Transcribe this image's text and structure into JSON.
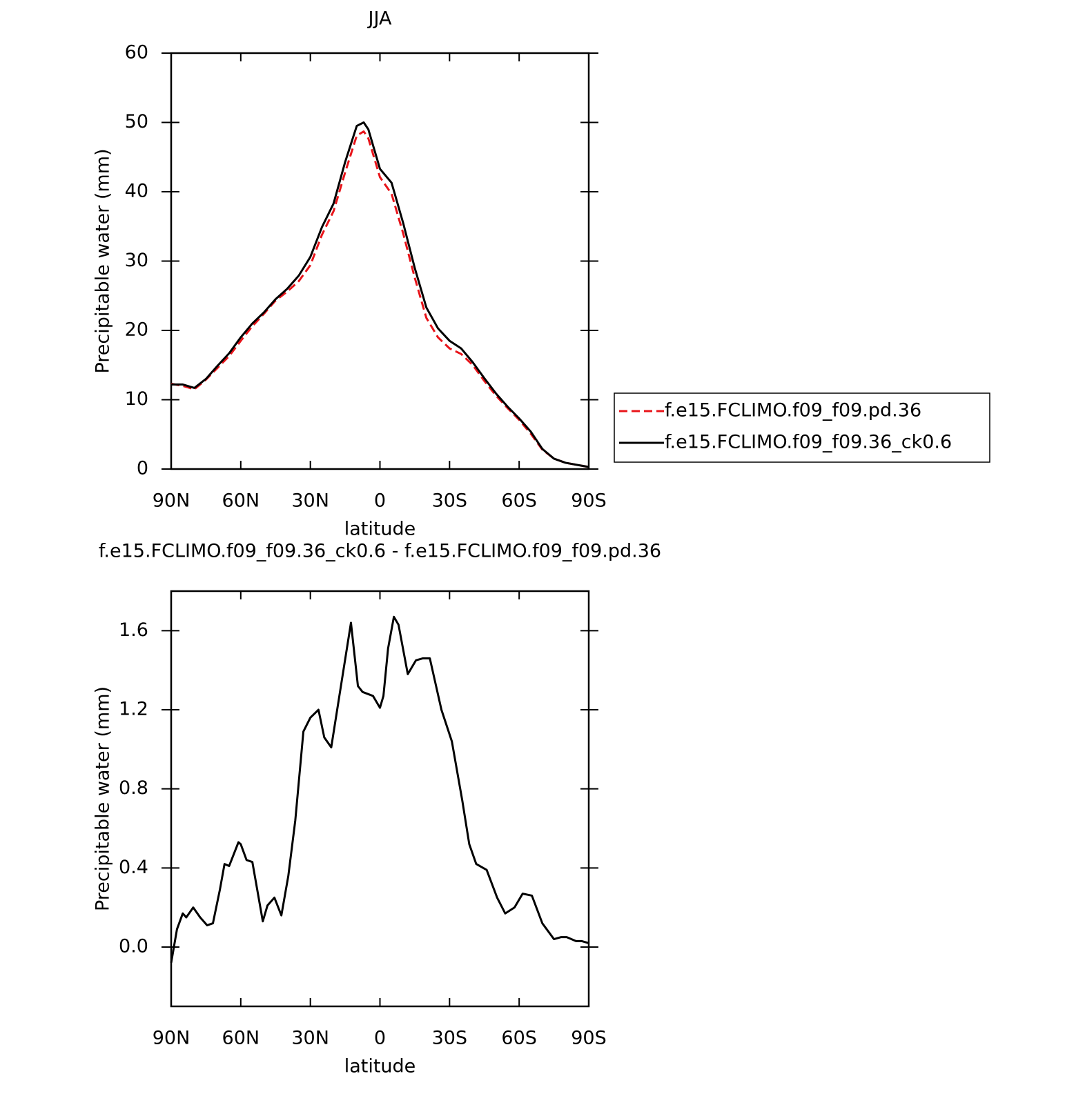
{
  "chart_data": [
    {
      "type": "line",
      "title": "JJA",
      "xlabel": "latitude",
      "ylabel": "Precipitable water (mm)",
      "x": [
        90,
        85,
        80,
        75,
        70,
        65,
        60,
        55,
        50,
        45,
        40,
        35,
        30,
        25,
        20,
        15,
        10,
        7,
        5,
        0,
        -5,
        -10,
        -15,
        -20,
        -25,
        -30,
        -35,
        -40,
        -45,
        -50,
        -55,
        -60,
        -65,
        -70,
        -75,
        -80,
        -85,
        -90
      ],
      "series": [
        {
          "name": "f.e15.FCLIMO.f09_f09.pd.36",
          "color": "#e8141a",
          "style": "dashed",
          "values": [
            12.3,
            12.0,
            11.5,
            12.9,
            14.6,
            16.3,
            18.5,
            20.6,
            22.4,
            24.3,
            25.6,
            27.1,
            29.4,
            33.8,
            37.2,
            42.8,
            48.1,
            48.7,
            47.7,
            42.1,
            39.7,
            34.0,
            27.6,
            21.8,
            19.0,
            17.4,
            16.6,
            15.0,
            12.7,
            10.6,
            8.8,
            7.1,
            5.1,
            2.8,
            1.5,
            0.9,
            0.6,
            0.3
          ]
        },
        {
          "name": "f.e15.FCLIMO.f09_f09.36_ck0.6",
          "color": "#000000",
          "style": "solid",
          "values": [
            12.2,
            12.2,
            11.7,
            13.0,
            14.9,
            16.7,
            19.0,
            21.0,
            22.6,
            24.5,
            26.0,
            27.9,
            30.6,
            34.9,
            38.3,
            44.3,
            49.5,
            50.0,
            49.0,
            43.3,
            41.3,
            35.5,
            29.0,
            23.3,
            20.3,
            18.5,
            17.4,
            15.4,
            13.1,
            10.9,
            9.0,
            7.3,
            5.4,
            2.9,
            1.5,
            0.9,
            0.6,
            0.3
          ]
        }
      ],
      "xlim": [
        90,
        -90
      ],
      "xticks": [
        {
          "value": 90,
          "label": "90N"
        },
        {
          "value": 60,
          "label": "60N"
        },
        {
          "value": 30,
          "label": "30N"
        },
        0,
        {
          "value": -30,
          "label": "30S"
        },
        {
          "value": -60,
          "label": "60S"
        },
        {
          "value": -90,
          "label": "90S"
        }
      ],
      "ylim": [
        0,
        60
      ],
      "yticks": [
        0,
        10,
        20,
        30,
        40,
        50,
        60
      ],
      "legend": "right"
    },
    {
      "type": "line",
      "title": "f.e15.FCLIMO.f09_f09.36_ck0.6 - f.e15.FCLIMO.f09_f09.pd.36",
      "xlabel": "latitude",
      "ylabel": "Precipitable water (mm)",
      "x": [
        90,
        87.5,
        85,
        83.5,
        80.5,
        77.5,
        74.5,
        72,
        69,
        67,
        65,
        61,
        60,
        57.5,
        55,
        50.5,
        48.5,
        45.5,
        42.5,
        39.5,
        36.5,
        33,
        30,
        26.5,
        24,
        21,
        17.5,
        12.5,
        9.5,
        7.5,
        3,
        0,
        -1.5,
        -3.5,
        -6,
        -8,
        -12,
        -15.5,
        -18.5,
        -21.5,
        -26.5,
        -31,
        -35.5,
        -38.5,
        -41.5,
        -46,
        -50.5,
        -54,
        -58,
        -61.5,
        -65.5,
        -70,
        -72.5,
        -75,
        -78,
        -80.5,
        -84.5,
        -87,
        -90
      ],
      "series": [
        {
          "name": "difference",
          "color": "#000000",
          "style": "solid",
          "values": [
            -0.08,
            0.09,
            0.17,
            0.15,
            0.2,
            0.15,
            0.11,
            0.12,
            0.29,
            0.42,
            0.41,
            0.53,
            0.52,
            0.44,
            0.43,
            0.13,
            0.21,
            0.25,
            0.16,
            0.36,
            0.64,
            1.09,
            1.16,
            1.2,
            1.06,
            1.01,
            1.27,
            1.64,
            1.32,
            1.29,
            1.27,
            1.21,
            1.27,
            1.51,
            1.67,
            1.63,
            1.38,
            1.45,
            1.46,
            1.46,
            1.2,
            1.04,
            0.74,
            0.52,
            0.42,
            0.39,
            0.25,
            0.17,
            0.2,
            0.27,
            0.26,
            0.12,
            0.08,
            0.04,
            0.05,
            0.05,
            0.03,
            0.03,
            0.02
          ]
        }
      ],
      "xlim": [
        90,
        -90
      ],
      "xticks": [
        {
          "value": 90,
          "label": "90N"
        },
        {
          "value": 60,
          "label": "60N"
        },
        {
          "value": 30,
          "label": "30N"
        },
        0,
        {
          "value": -30,
          "label": "30S"
        },
        {
          "value": -60,
          "label": "60S"
        },
        {
          "value": -90,
          "label": "90S"
        }
      ],
      "ylim": [
        -0.3,
        1.8
      ],
      "yticks": [
        {
          "value": 0,
          "label": "0.0"
        },
        0.4,
        0.8,
        1.2,
        1.6
      ],
      "legend": "none"
    }
  ]
}
